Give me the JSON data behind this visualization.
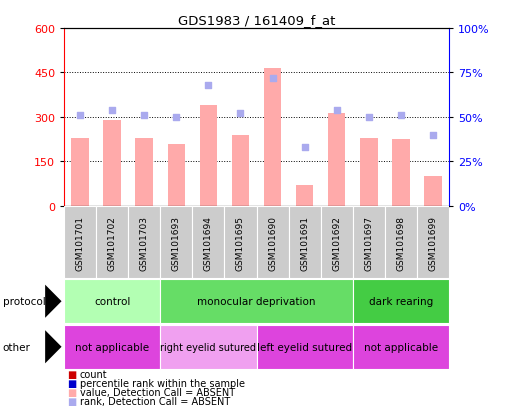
{
  "title": "GDS1983 / 161409_f_at",
  "samples": [
    "GSM101701",
    "GSM101702",
    "GSM101703",
    "GSM101693",
    "GSM101694",
    "GSM101695",
    "GSM101690",
    "GSM101691",
    "GSM101692",
    "GSM101697",
    "GSM101698",
    "GSM101699"
  ],
  "bar_values": [
    230,
    290,
    230,
    210,
    340,
    240,
    465,
    70,
    315,
    230,
    225,
    100
  ],
  "dot_values_pct": [
    51,
    54,
    51,
    50,
    68,
    52,
    72,
    33,
    54,
    50,
    51,
    40
  ],
  "ylim_left": [
    0,
    600
  ],
  "ylim_right": [
    0,
    100
  ],
  "yticks_left": [
    0,
    150,
    300,
    450,
    600
  ],
  "yticks_right": [
    0,
    25,
    50,
    75,
    100
  ],
  "protocol_groups": [
    {
      "label": "control",
      "start": 0,
      "end": 3,
      "color": "#b3ffb3"
    },
    {
      "label": "monocular deprivation",
      "start": 3,
      "end": 9,
      "color": "#66dd66"
    },
    {
      "label": "dark rearing",
      "start": 9,
      "end": 12,
      "color": "#44cc44"
    }
  ],
  "other_groups": [
    {
      "label": "not applicable",
      "start": 0,
      "end": 3,
      "color": "#dd44dd"
    },
    {
      "label": "right eyelid sutured",
      "start": 3,
      "end": 6,
      "color": "#f0a0f0"
    },
    {
      "label": "left eyelid sutured",
      "start": 6,
      "end": 9,
      "color": "#dd44dd"
    },
    {
      "label": "not applicable",
      "start": 9,
      "end": 12,
      "color": "#dd44dd"
    }
  ],
  "bar_color_absent": "#ffaaaa",
  "dot_color_absent": "#aaaaee",
  "sample_bg": "#cccccc",
  "fig_bg": "#ffffff",
  "legend": [
    {
      "color": "#cc0000",
      "label": "count"
    },
    {
      "color": "#0000cc",
      "label": "percentile rank within the sample"
    },
    {
      "color": "#ffaaaa",
      "label": "value, Detection Call = ABSENT"
    },
    {
      "color": "#aaaaee",
      "label": "rank, Detection Call = ABSENT"
    }
  ]
}
